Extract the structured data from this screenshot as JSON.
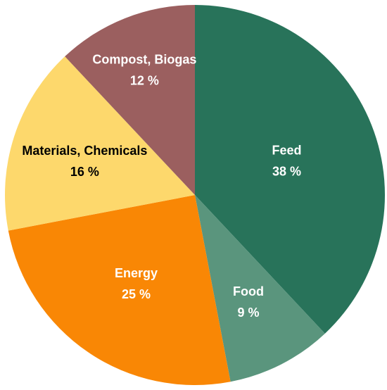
{
  "chart_data": {
    "type": "pie",
    "slices": [
      {
        "label": "Feed",
        "value": 38,
        "value_label": "38 %",
        "color": "#28735A",
        "text_color": "#ffffff"
      },
      {
        "label": "Food",
        "value": 9,
        "value_label": "9 %",
        "color": "#5A957D",
        "text_color": "#ffffff"
      },
      {
        "label": "Energy",
        "value": 25,
        "value_label": "25 %",
        "color": "#F98705",
        "text_color": "#ffffff"
      },
      {
        "label": "Materials, Chemicals",
        "value": 16,
        "value_label": "16 %",
        "color": "#FDD86C",
        "text_color": "#000000"
      },
      {
        "label": "Compost, Biogas",
        "value": 12,
        "value_label": "12 %",
        "color": "#9B5F5F",
        "text_color": "#ffffff"
      }
    ]
  }
}
